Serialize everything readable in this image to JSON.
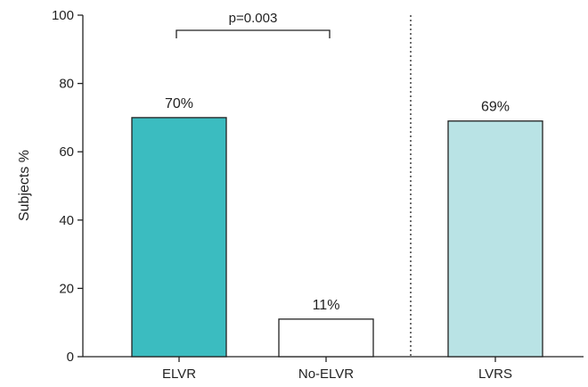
{
  "chart_data": {
    "type": "bar",
    "categories": [
      "ELVR",
      "No-ELVR",
      "LVRS"
    ],
    "values": [
      70,
      11,
      69
    ],
    "data_labels": [
      "70%",
      "11%",
      "69%"
    ],
    "ylabel": "Subjects %",
    "xlabel": "",
    "ylim": [
      0,
      100
    ],
    "yticks": [
      "0",
      "20",
      "40",
      "60",
      "80",
      "100"
    ],
    "colors": [
      "#3bbcc0",
      "#ffffff",
      "#b9e3e5"
    ],
    "annotation": "p=0.003",
    "grid": false,
    "divider": "dotted vertical line between No-ELVR and LVRS"
  }
}
